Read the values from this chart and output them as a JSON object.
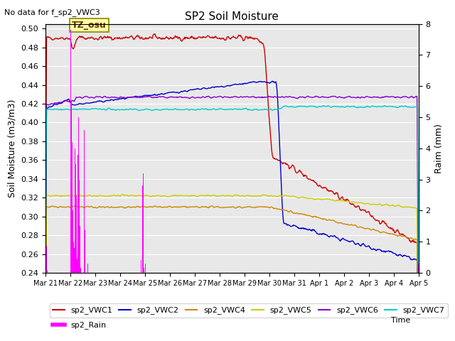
{
  "title": "SP2 Soil Moisture",
  "no_data_text": "No data for f_sp2_VWC3",
  "xlabel": "Time",
  "ylabel_left": "Soil Moisture (m3/m3)",
  "ylabel_right": "Raim (mm)",
  "annotation_text": "TZ_osu",
  "ylim_left": [
    0.24,
    0.505
  ],
  "ylim_right": [
    0.0,
    8.0
  ],
  "yticks_left": [
    0.24,
    0.26,
    0.28,
    0.3,
    0.32,
    0.34,
    0.36,
    0.38,
    0.4,
    0.42,
    0.44,
    0.46,
    0.48,
    0.5
  ],
  "yticks_right": [
    0.0,
    1.0,
    2.0,
    3.0,
    4.0,
    5.0,
    6.0,
    7.0,
    8.0
  ],
  "xtick_labels": [
    "Mar 21",
    "Mar 22",
    "Mar 23",
    "Mar 24",
    "Mar 25",
    "Mar 26",
    "Mar 27",
    "Mar 28",
    "Mar 29",
    "Mar 30",
    "Mar 31",
    "Apr 1",
    "Apr 2",
    "Apr 3",
    "Apr 4",
    "Apr 5"
  ],
  "background_color": "#e8e8e8",
  "grid_color": "#ffffff",
  "colors": {
    "sp2_VWC1": "#cc0000",
    "sp2_VWC2": "#0000cc",
    "sp2_VWC4": "#cc8800",
    "sp2_VWC5": "#cccc00",
    "sp2_VWC6": "#8800cc",
    "sp2_VWC7": "#00cccc",
    "sp2_Rain": "#ff00ff"
  }
}
